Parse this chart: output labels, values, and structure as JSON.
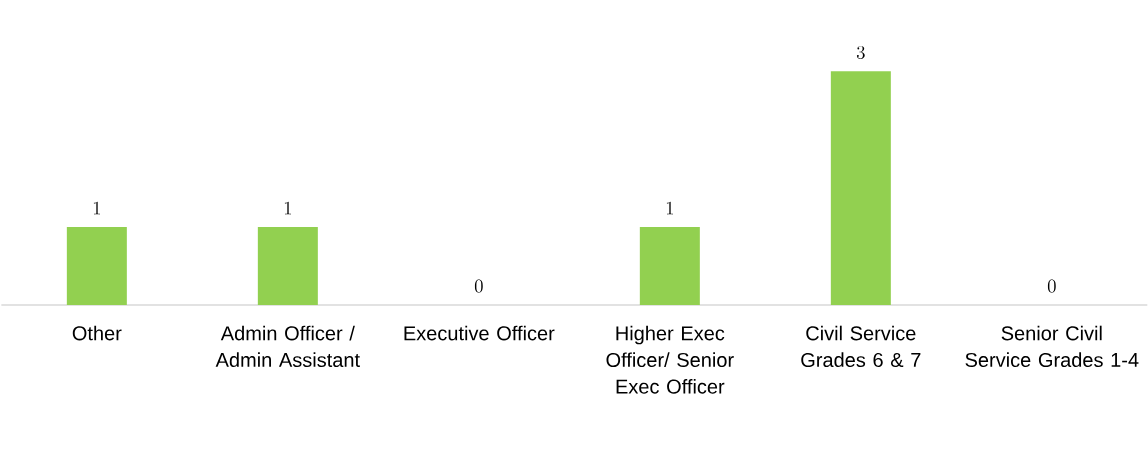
{
  "chart_data": {
    "type": "bar",
    "categories": [
      "Other",
      "Admin Officer / Admin Assistant",
      "Executive Officer",
      "Higher Exec Officer/ Senior Exec Officer",
      "Civil Service Grades 6 & 7",
      "Senior Civil Service Grades 1-4"
    ],
    "values": [
      1,
      1,
      0,
      1,
      3,
      0
    ],
    "color": "#92d050",
    "data_labels": true
  }
}
